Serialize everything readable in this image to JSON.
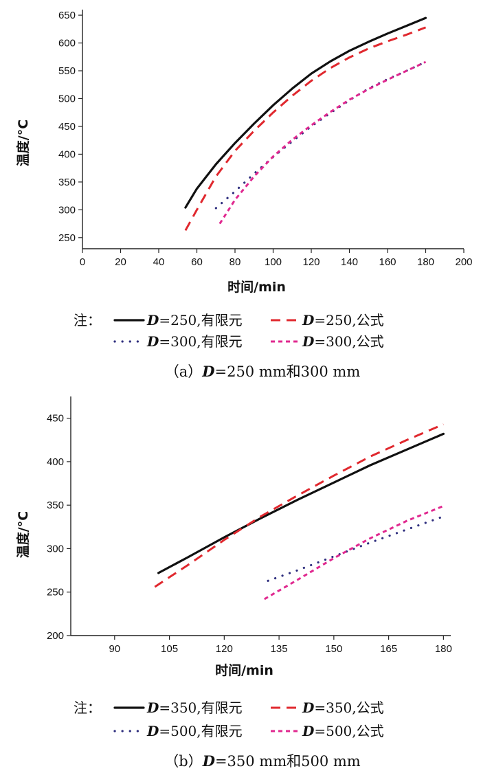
{
  "chart_data": [
    {
      "type": "line",
      "xlabel": "时间/min",
      "ylabel": "温度/°C",
      "xlim": [
        0,
        200
      ],
      "ylim": [
        230,
        660
      ],
      "xticks": [
        "0",
        "20",
        "40",
        "60",
        "80",
        "100",
        "120",
        "140",
        "160",
        "180",
        "200"
      ],
      "yticks": [
        "250",
        "300",
        "350",
        "400",
        "450",
        "500",
        "550",
        "600",
        "650"
      ],
      "legend_note": "注：",
      "caption": "（a）D=250 mm和300 mm",
      "series": [
        {
          "name": "D=250,有限元",
          "color": "#111111",
          "style": "solid",
          "x": [
            54,
            60,
            70,
            80,
            90,
            100,
            110,
            120,
            130,
            140,
            150,
            160,
            170,
            180
          ],
          "y": [
            304,
            338,
            382,
            420,
            455,
            488,
            518,
            545,
            567,
            586,
            602,
            617,
            631,
            645
          ]
        },
        {
          "name": "D=250,公式",
          "color": "#e0282e",
          "style": "longdash",
          "x": [
            54,
            60,
            70,
            80,
            90,
            100,
            110,
            120,
            130,
            140,
            150,
            160,
            170,
            180
          ],
          "y": [
            263,
            300,
            360,
            406,
            442,
            475,
            505,
            532,
            555,
            574,
            590,
            603,
            615,
            628
          ]
        },
        {
          "name": "D=300,有限元",
          "color": "#2e2e7e",
          "style": "dot",
          "x": [
            70,
            80,
            90,
            100,
            110,
            120,
            130,
            140,
            150,
            160,
            170,
            180
          ],
          "y": [
            303,
            333,
            365,
            395,
            423,
            450,
            474,
            497,
            518,
            535,
            550,
            566
          ]
        },
        {
          "name": "D=300,公式",
          "color": "#e0288f",
          "style": "shortdash",
          "x": [
            72,
            80,
            90,
            100,
            110,
            120,
            130,
            140,
            150,
            160,
            170,
            180
          ],
          "y": [
            275,
            318,
            360,
            396,
            426,
            452,
            476,
            498,
            517,
            534,
            550,
            566
          ]
        }
      ]
    },
    {
      "type": "line",
      "xlabel": "时间/min",
      "ylabel": "温度/°C",
      "xlim": [
        78,
        182
      ],
      "ylim": [
        200,
        475
      ],
      "xticks": [
        "90",
        "105",
        "120",
        "135",
        "150",
        "165",
        "180"
      ],
      "yticks": [
        "200",
        "250",
        "300",
        "350",
        "400",
        "450"
      ],
      "legend_note": "注：",
      "caption": "（b）D=350 mm和500 mm",
      "series": [
        {
          "name": "D=350,有限元",
          "color": "#111111",
          "style": "solid",
          "x": [
            102,
            110,
            120,
            130,
            140,
            150,
            160,
            170,
            180
          ],
          "y": [
            272,
            290,
            313,
            335,
            356,
            376,
            396,
            414,
            432
          ]
        },
        {
          "name": "D=350,公式",
          "color": "#e0282e",
          "style": "longdash",
          "x": [
            101,
            110,
            120,
            130,
            140,
            150,
            160,
            170,
            180
          ],
          "y": [
            256,
            281,
            310,
            337,
            361,
            384,
            406,
            425,
            443
          ]
        },
        {
          "name": "D=500,有限元",
          "color": "#2e2e7e",
          "style": "dot",
          "x": [
            132,
            140,
            150,
            160,
            170,
            180
          ],
          "y": [
            263,
            275,
            291,
            307,
            322,
            337
          ]
        },
        {
          "name": "D=500,公式",
          "color": "#e0288f",
          "style": "shortdash",
          "x": [
            131,
            140,
            150,
            160,
            170,
            180
          ],
          "y": [
            242,
            264,
            289,
            312,
            332,
            349
          ]
        }
      ]
    }
  ]
}
